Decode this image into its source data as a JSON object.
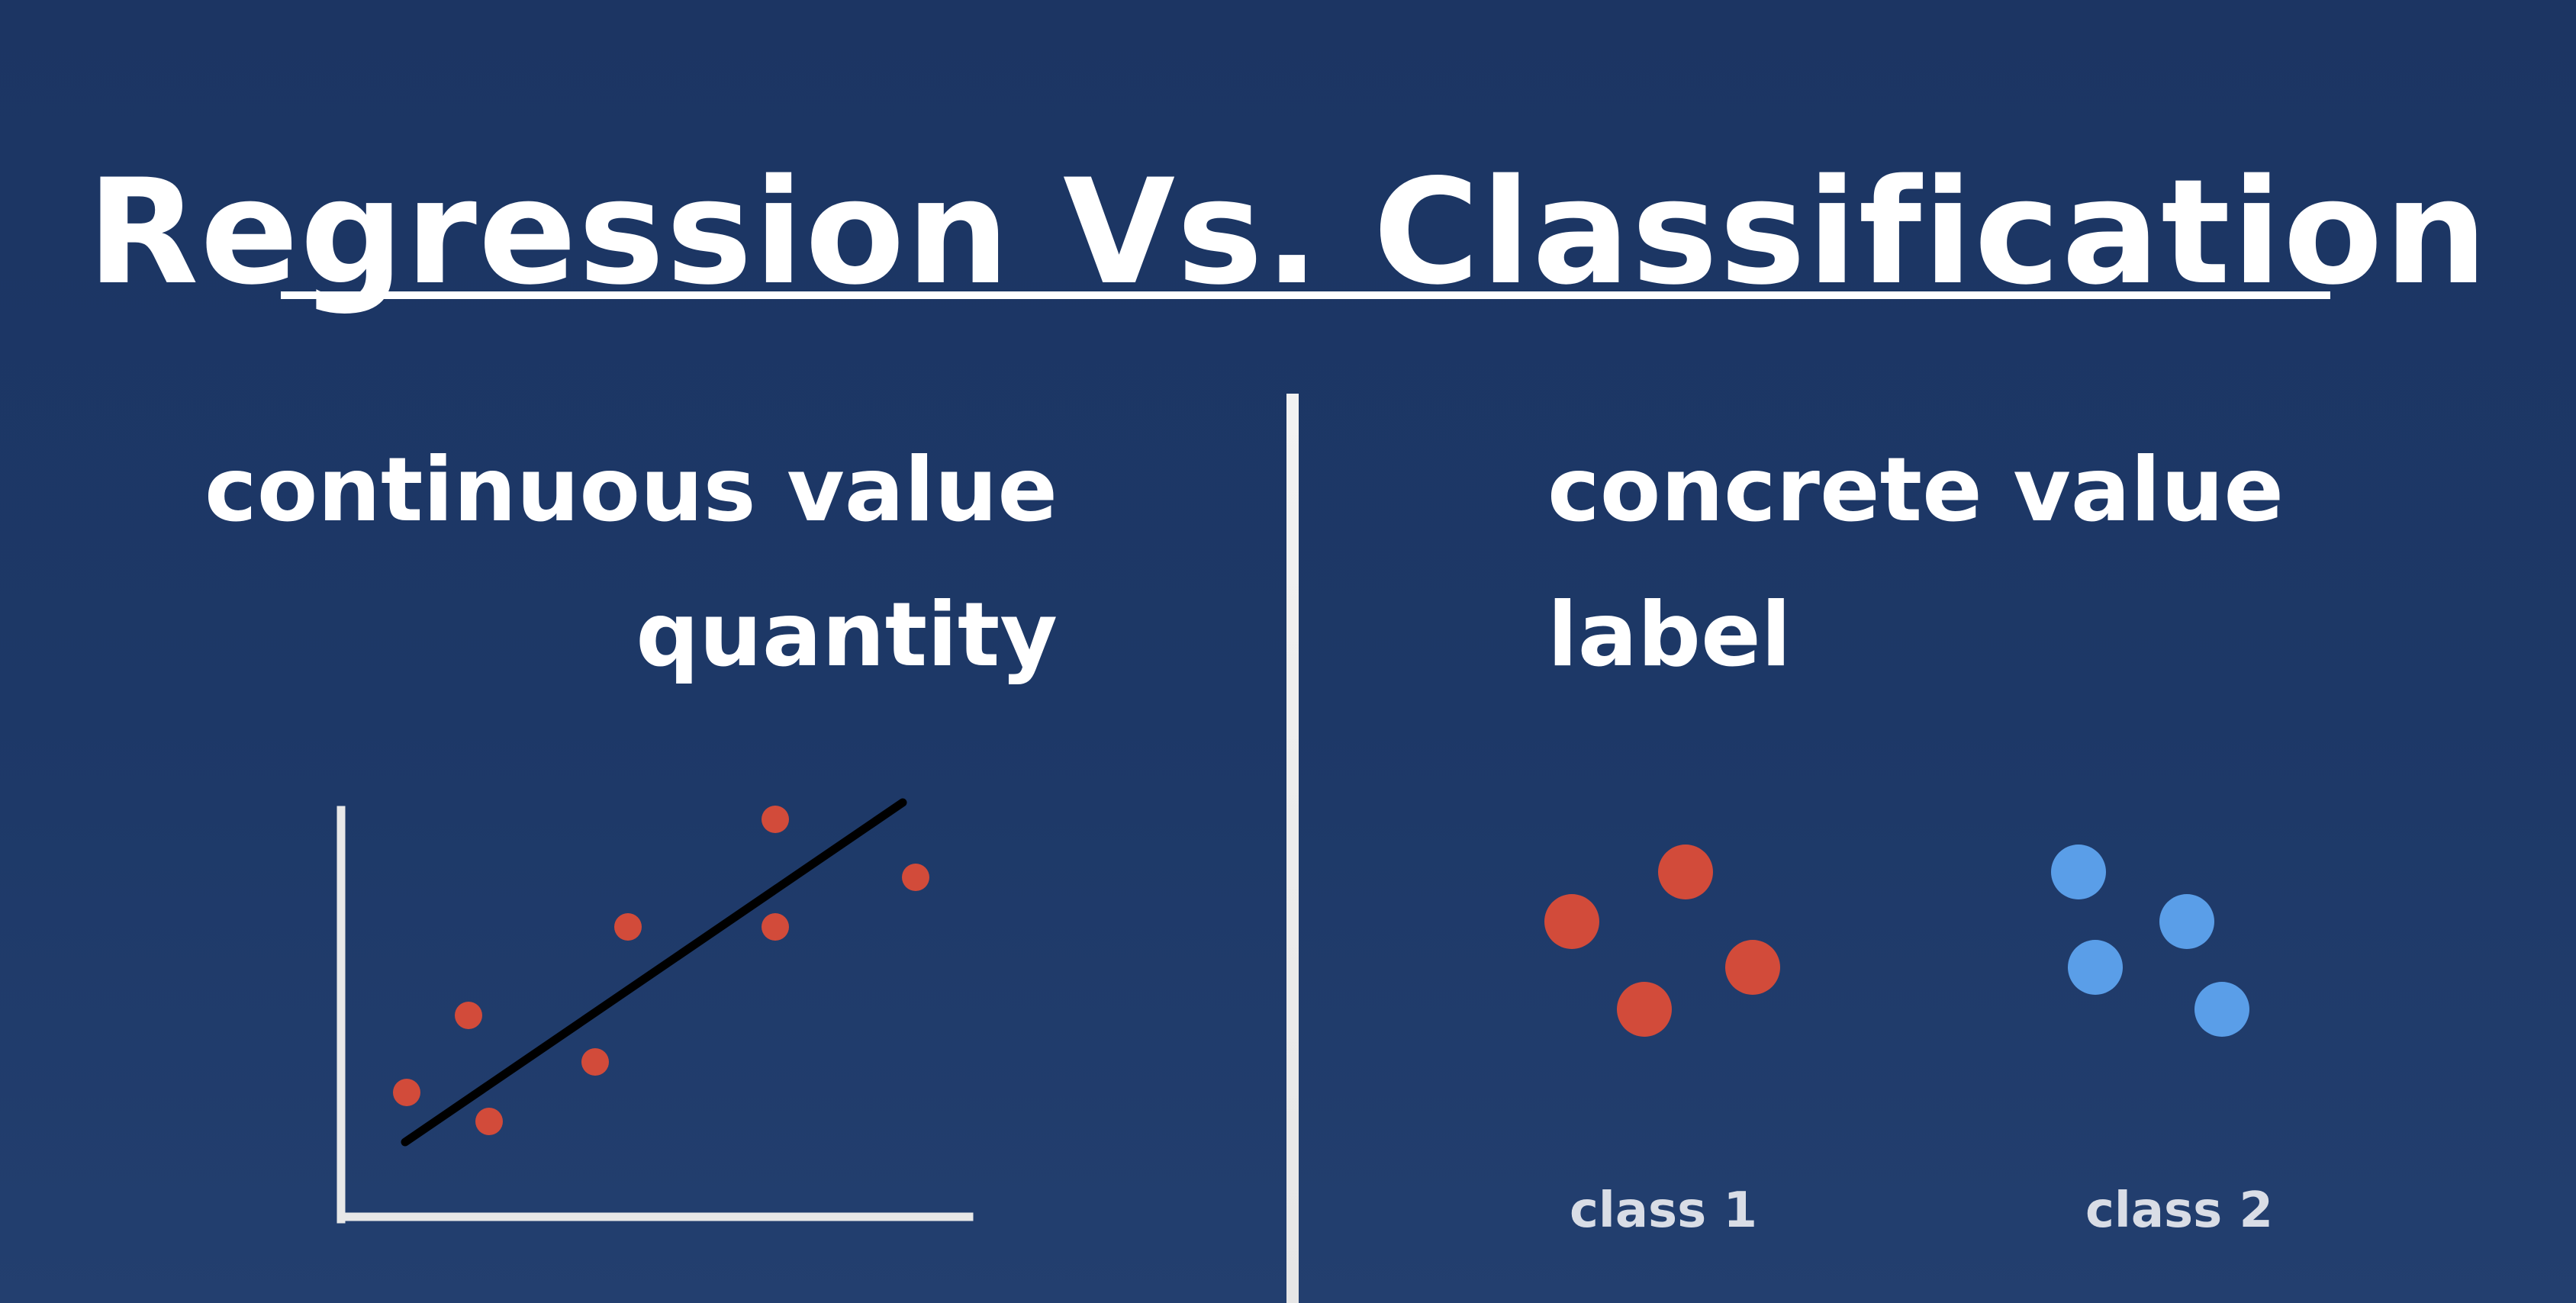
{
  "title": "Regression Vs. Classification",
  "regression": {
    "line1": "continuous value",
    "line2": "quantity"
  },
  "classification": {
    "line1": "concrete value",
    "line2": "label",
    "class1_label": "class 1",
    "class2_label": "class 2"
  },
  "colors": {
    "background": "#1d3867",
    "red_point": "#d24b3a",
    "blue_point": "#5a9ee8",
    "fit_line": "#000000",
    "axis": "#e8e8e8"
  }
}
